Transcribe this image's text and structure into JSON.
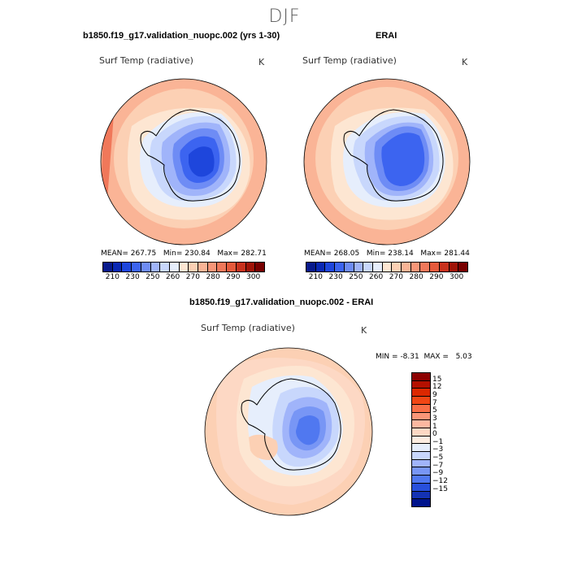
{
  "figure": {
    "season": "DJF",
    "units": "K"
  },
  "panels": [
    {
      "id": "model",
      "title": "b1850.f19_g17.validation_nuopc.002 (yrs 1-30)",
      "variable": "Surf Temp (radiative)",
      "units": "K",
      "stats": {
        "mean_label": "MEAN=",
        "mean": "267.75",
        "min_label": "Min=",
        "min": "230.84",
        "max_label": "Max=",
        "max": "282.71"
      }
    },
    {
      "id": "obs",
      "title": "ERAI",
      "variable": "Surf Temp (radiative)",
      "units": "K",
      "stats": {
        "mean_label": "MEAN=",
        "mean": "268.05",
        "min_label": "Min=",
        "min": "238.14",
        "max_label": "Max=",
        "max": "281.44"
      }
    },
    {
      "id": "diff",
      "title": "b1850.f19_g17.validation_nuopc.002 - ERAI",
      "variable": "Surf Temp (radiative)",
      "units": "K",
      "stats": {
        "min_label": "MIN =",
        "min": "-8.31",
        "max_label": "MAX =",
        "max": "5.03"
      }
    }
  ],
  "colorbar_abs": {
    "labels": [
      "210",
      "230",
      "250",
      "260",
      "270",
      "280",
      "290",
      "300"
    ],
    "colors": [
      "#081a8c",
      "#0a28b4",
      "#1e46dc",
      "#3c64f0",
      "#6e8cf5",
      "#a0b4fa",
      "#c8d7fc",
      "#e6eefc",
      "#fde6d2",
      "#fcd0b4",
      "#fab496",
      "#f89678",
      "#f0785a",
      "#e65a3c",
      "#c8321e",
      "#a01408",
      "#780000"
    ]
  },
  "colorbar_diff": {
    "labels": [
      "15",
      "12",
      "9",
      "7",
      "5",
      "3",
      "1",
      "0",
      "−1",
      "−3",
      "−5",
      "−7",
      "−9",
      "−12",
      "−15"
    ],
    "colors": [
      "#8c0000",
      "#b41000",
      "#dc2800",
      "#f04614",
      "#f86e46",
      "#fa9678",
      "#fcb8a0",
      "#fdd8c4",
      "#fcece0",
      "#e6eefc",
      "#c8d7fc",
      "#a0b4fa",
      "#7896f5",
      "#5078f0",
      "#2850dc",
      "#1432b4",
      "#00148c"
    ]
  },
  "map_colors": {
    "ocean_warm": "#fab496",
    "ocean_mid": "#fcd0b4",
    "ocean_light": "#fde6d2",
    "ice_edge": "#e6eefc",
    "ice_1": "#c8d7fc",
    "ice_2": "#a0b4fa",
    "ice_3": "#6e8cf5",
    "ice_4": "#3c64f0",
    "ice_5": "#1e46dc",
    "diff_pos": "#fcd0b4",
    "diff_pos_light": "#fdd8c4",
    "diff_zero": "#fde6d2"
  }
}
